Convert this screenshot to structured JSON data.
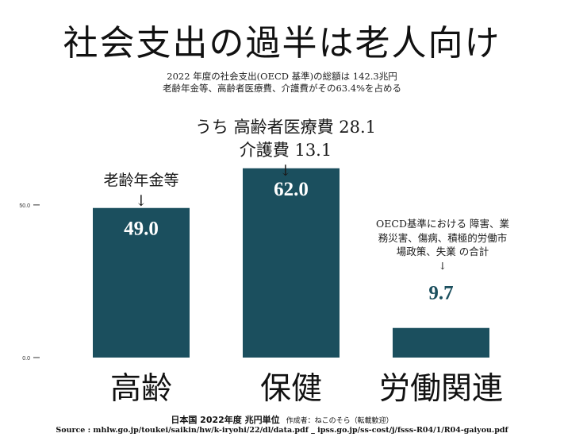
{
  "header": {
    "title": "社会支出の過半は老人向け",
    "subtitle_line1": "2022 年度の社会支出(OECD 基準)の総額は 142.3兆円",
    "subtitle_line2": "老齢年金等、高齢者医療費、介護費がその63.4%を占める"
  },
  "annotations": {
    "pension": "老齢年金等",
    "health_line1": "うち 高齢者医療費 28.1",
    "health_line2": "介護費 13.1",
    "labor_line1": "OECD基準における 障害、業",
    "labor_line2": "務災害、傷病、積極的労働市",
    "labor_line3": "場政策、失業 の合計",
    "arrow": "↓"
  },
  "footer": {
    "main": "日本国 2022年度 兆円単位",
    "author": "作成者：ねこのそら（転載歓迎）",
    "source": "Source : mhlw.go.jp/toukei/saikin/hw/k-iryohi/22/dl/data.pdf _ ipss.go.jp/ss-cost/j/fsss-R04/1/R04-gaiyou.pdf"
  },
  "chart_data": {
    "type": "bar",
    "categories": [
      "高齢",
      "保健",
      "労働関連"
    ],
    "values": [
      49.0,
      62.0,
      9.7
    ],
    "data_labels": [
      "49.0",
      "62.0",
      "9.7"
    ],
    "yticks": [
      "0.0",
      "50.0"
    ],
    "ylim": [
      0,
      74.7
    ],
    "bar_color": "#1b4f5e",
    "inside_label_color": "#ffffff",
    "outside_label_color": "#1b4f5e",
    "grid": false,
    "legend": "none"
  }
}
